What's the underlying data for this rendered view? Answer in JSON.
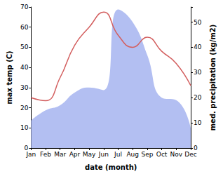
{
  "chart_data": {
    "type": "line",
    "x_label": "date (month)",
    "y_label": "max temp (C)",
    "y2_label": "med. precipitation (kg/m2)",
    "categories": [
      "Jan",
      "Feb",
      "Mar",
      "Apr",
      "May",
      "Jun",
      "Jul",
      "Aug",
      "Sep",
      "Oct",
      "Nov",
      "Dec"
    ],
    "series": [
      {
        "type": "area",
        "axis": "y2",
        "color": "#b3bff2",
        "values": [
          11,
          15,
          17,
          22,
          24,
          23,
          55,
          50,
          37,
          20,
          19,
          8
        ]
      },
      {
        "type": "line",
        "color": "#d35f5f",
        "values": [
          25,
          23.5,
          35,
          51,
          60,
          67.5,
          56,
          50,
          55,
          48,
          42,
          31
        ]
      }
    ],
    "ylim": [
      0,
      70
    ],
    "yticks": [
      0,
      10,
      20,
      30,
      40,
      50,
      60,
      70
    ],
    "y2lim": [
      0,
      56
    ],
    "y2ticks": [
      0,
      10,
      20,
      30,
      40,
      50
    ],
    "grid": false
  }
}
